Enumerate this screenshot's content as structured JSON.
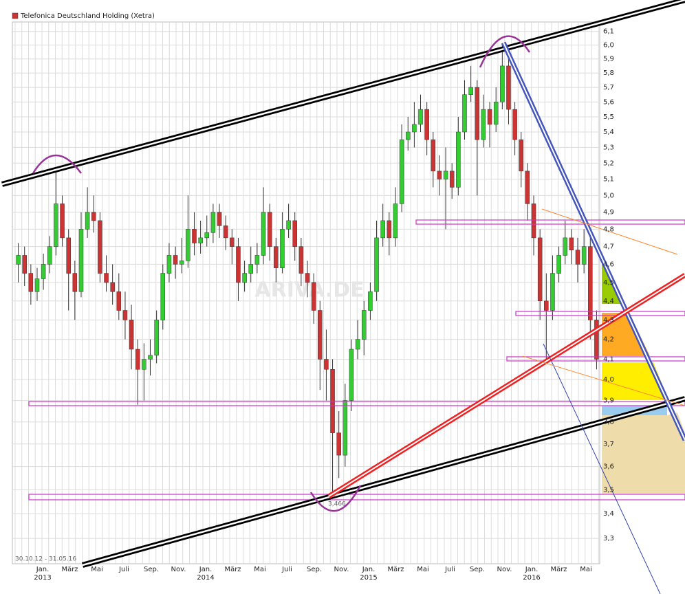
{
  "chart_data": {
    "type": "candlestick",
    "title": "Telefonica Deutschland Holding (Xetra)",
    "date_range": "30.10.12 - 31.05.16",
    "watermark": "ARIVA.DE",
    "low_label": "3,466",
    "up_color": "#33cc33",
    "down_color": "#cc3333",
    "log_scale": true,
    "grid": true,
    "ylim": [
      3.2,
      6.17
    ],
    "yticks": [
      {
        "value": 3.3,
        "label": "3,3"
      },
      {
        "value": 3.4,
        "label": "3,4"
      },
      {
        "value": 3.5,
        "label": "3,5"
      },
      {
        "value": 3.6,
        "label": "3,6"
      },
      {
        "value": 3.7,
        "label": "3,7"
      },
      {
        "value": 3.8,
        "label": "3,8"
      },
      {
        "value": 3.9,
        "label": "3,9"
      },
      {
        "value": 4.0,
        "label": "4,0"
      },
      {
        "value": 4.1,
        "label": "4,1"
      },
      {
        "value": 4.2,
        "label": "4,2"
      },
      {
        "value": 4.3,
        "label": "4,3"
      },
      {
        "value": 4.4,
        "label": "4,4"
      },
      {
        "value": 4.5,
        "label": "4,5"
      },
      {
        "value": 4.6,
        "label": "4,6"
      },
      {
        "value": 4.7,
        "label": "4,7"
      },
      {
        "value": 4.8,
        "label": "4,8"
      },
      {
        "value": 4.9,
        "label": "4,9"
      },
      {
        "value": 5.0,
        "label": "5,0"
      },
      {
        "value": 5.1,
        "label": "5,1"
      },
      {
        "value": 5.2,
        "label": "5,2"
      },
      {
        "value": 5.3,
        "label": "5,3"
      },
      {
        "value": 5.4,
        "label": "5,4"
      },
      {
        "value": 5.5,
        "label": "5,5"
      },
      {
        "value": 5.6,
        "label": "5,6"
      },
      {
        "value": 5.7,
        "label": "5,7"
      },
      {
        "value": 5.8,
        "label": "5,8"
      },
      {
        "value": 5.9,
        "label": "5,9"
      },
      {
        "value": 6.0,
        "label": "6,0"
      },
      {
        "value": 6.1,
        "label": "6,1"
      }
    ],
    "x_labels": [
      "Jan.",
      "März",
      "Mai",
      "Juli",
      "Sep.",
      "Nov.",
      "Jan.",
      "März",
      "Mai",
      "Juli",
      "Sep.",
      "Nov.",
      "Jan.",
      "März",
      "Mai",
      "Juli",
      "Sep.",
      "Nov.",
      "Jan.",
      "März",
      "Mai"
    ],
    "x_years": [
      "2013",
      null,
      null,
      null,
      null,
      null,
      "2014",
      null,
      null,
      null,
      null,
      null,
      "2015",
      null,
      null,
      null,
      null,
      null,
      "2016",
      null,
      null
    ],
    "candles": [
      [
        4.6,
        4.72,
        4.5,
        4.65
      ],
      [
        4.65,
        4.7,
        4.48,
        4.55
      ],
      [
        4.55,
        4.6,
        4.38,
        4.45
      ],
      [
        4.45,
        4.58,
        4.4,
        4.52
      ],
      [
        4.52,
        4.66,
        4.46,
        4.6
      ],
      [
        4.6,
        4.76,
        4.55,
        4.7
      ],
      [
        4.7,
        5.15,
        4.65,
        4.95
      ],
      [
        4.95,
        5.0,
        4.7,
        4.75
      ],
      [
        4.75,
        4.8,
        4.35,
        4.55
      ],
      [
        4.55,
        4.62,
        4.3,
        4.45
      ],
      [
        4.45,
        4.9,
        4.42,
        4.8
      ],
      [
        4.8,
        5.05,
        4.75,
        4.9
      ],
      [
        4.9,
        5.0,
        4.78,
        4.85
      ],
      [
        4.85,
        4.9,
        4.5,
        4.55
      ],
      [
        4.55,
        4.65,
        4.45,
        4.5
      ],
      [
        4.5,
        4.6,
        4.38,
        4.45
      ],
      [
        4.45,
        4.55,
        4.3,
        4.35
      ],
      [
        4.35,
        4.45,
        4.2,
        4.3
      ],
      [
        4.3,
        4.38,
        4.05,
        4.15
      ],
      [
        4.15,
        4.2,
        3.88,
        4.05
      ],
      [
        4.05,
        4.18,
        3.9,
        4.1
      ],
      [
        4.1,
        4.2,
        4.02,
        4.12
      ],
      [
        4.12,
        4.35,
        4.08,
        4.3
      ],
      [
        4.3,
        4.6,
        4.25,
        4.55
      ],
      [
        4.55,
        4.72,
        4.5,
        4.65
      ],
      [
        4.65,
        4.7,
        4.52,
        4.6
      ],
      [
        4.6,
        4.75,
        4.55,
        4.62
      ],
      [
        4.62,
        5.0,
        4.58,
        4.8
      ],
      [
        4.8,
        4.9,
        4.65,
        4.72
      ],
      [
        4.72,
        4.85,
        4.66,
        4.75
      ],
      [
        4.75,
        4.88,
        4.7,
        4.78
      ],
      [
        4.78,
        4.95,
        4.72,
        4.9
      ],
      [
        4.9,
        4.95,
        4.75,
        4.82
      ],
      [
        4.82,
        4.88,
        4.68,
        4.75
      ],
      [
        4.75,
        4.8,
        4.6,
        4.7
      ],
      [
        4.7,
        4.75,
        4.4,
        4.5
      ],
      [
        4.5,
        4.62,
        4.45,
        4.55
      ],
      [
        4.55,
        4.7,
        4.5,
        4.6
      ],
      [
        4.6,
        4.72,
        4.55,
        4.65
      ],
      [
        4.65,
        5.05,
        4.6,
        4.9
      ],
      [
        4.9,
        4.95,
        4.62,
        4.7
      ],
      [
        4.7,
        4.75,
        4.5,
        4.58
      ],
      [
        4.58,
        4.9,
        4.55,
        4.8
      ],
      [
        4.8,
        4.95,
        4.75,
        4.85
      ],
      [
        4.85,
        4.9,
        4.62,
        4.7
      ],
      [
        4.7,
        4.75,
        4.48,
        4.55
      ],
      [
        4.55,
        4.62,
        4.42,
        4.5
      ],
      [
        4.5,
        4.55,
        4.28,
        4.35
      ],
      [
        4.35,
        4.4,
        3.95,
        4.1
      ],
      [
        4.1,
        4.25,
        3.9,
        4.05
      ],
      [
        4.05,
        4.1,
        3.466,
        3.75
      ],
      [
        3.75,
        3.85,
        3.55,
        3.65
      ],
      [
        3.65,
        3.98,
        3.6,
        3.9
      ],
      [
        3.9,
        4.2,
        3.85,
        4.15
      ],
      [
        4.15,
        4.3,
        4.1,
        4.2
      ],
      [
        4.2,
        4.4,
        4.12,
        4.35
      ],
      [
        4.35,
        4.5,
        4.3,
        4.45
      ],
      [
        4.45,
        4.85,
        4.4,
        4.75
      ],
      [
        4.75,
        4.95,
        4.7,
        4.85
      ],
      [
        4.85,
        4.9,
        4.65,
        4.75
      ],
      [
        4.75,
        5.05,
        4.7,
        4.95
      ],
      [
        4.95,
        5.45,
        4.9,
        5.35
      ],
      [
        5.35,
        5.5,
        5.28,
        5.4
      ],
      [
        5.4,
        5.6,
        5.3,
        5.45
      ],
      [
        5.45,
        5.65,
        5.4,
        5.55
      ],
      [
        5.55,
        5.6,
        5.25,
        5.35
      ],
      [
        5.35,
        5.4,
        5.05,
        5.15
      ],
      [
        5.15,
        5.25,
        5.0,
        5.1
      ],
      [
        5.1,
        5.3,
        4.8,
        5.15
      ],
      [
        5.15,
        5.2,
        4.98,
        5.05
      ],
      [
        5.05,
        5.5,
        5.0,
        5.4
      ],
      [
        5.4,
        5.75,
        5.35,
        5.65
      ],
      [
        5.65,
        5.85,
        5.6,
        5.7
      ],
      [
        5.7,
        5.75,
        5.0,
        5.35
      ],
      [
        5.35,
        5.65,
        5.3,
        5.55
      ],
      [
        5.55,
        5.6,
        5.3,
        5.45
      ],
      [
        5.45,
        5.7,
        5.4,
        5.6
      ],
      [
        5.6,
        6.0,
        5.55,
        5.85
      ],
      [
        5.85,
        5.9,
        5.45,
        5.55
      ],
      [
        5.55,
        5.6,
        5.25,
        5.35
      ],
      [
        5.35,
        5.4,
        5.05,
        5.15
      ],
      [
        5.15,
        5.2,
        4.85,
        4.95
      ],
      [
        4.95,
        5.0,
        4.65,
        4.75
      ],
      [
        4.75,
        4.8,
        4.3,
        4.4
      ],
      [
        4.4,
        4.55,
        4.1,
        4.35
      ],
      [
        4.35,
        4.65,
        4.3,
        4.55
      ],
      [
        4.55,
        4.7,
        4.5,
        4.65
      ],
      [
        4.65,
        4.85,
        4.6,
        4.75
      ],
      [
        4.75,
        4.8,
        4.6,
        4.68
      ],
      [
        4.68,
        4.75,
        4.5,
        4.6
      ],
      [
        4.6,
        4.8,
        4.55,
        4.7
      ],
      [
        4.7,
        4.75,
        4.2,
        4.3
      ],
      [
        4.3,
        4.35,
        4.05,
        4.1
      ]
    ]
  }
}
